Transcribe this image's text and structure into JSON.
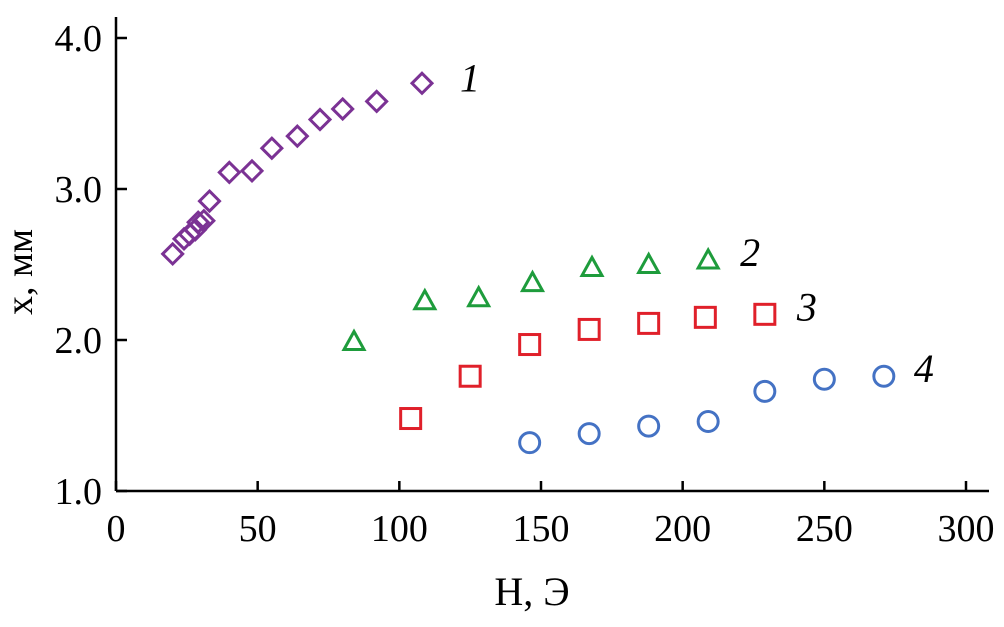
{
  "chart_data": {
    "type": "scatter",
    "title": "",
    "xlabel": "H, Э",
    "ylabel": "x, мм",
    "xlim": [
      0,
      300
    ],
    "ylim": [
      1.0,
      4.0
    ],
    "x_ticks": [
      0,
      50,
      100,
      150,
      200,
      250,
      300
    ],
    "x_tick_labels": [
      "0",
      "50",
      "100",
      "150",
      "200",
      "250",
      "300"
    ],
    "y_ticks": [
      1.0,
      2.0,
      3.0,
      4.0
    ],
    "y_tick_labels": [
      "1.0",
      "2.0",
      "3.0",
      "4.0"
    ],
    "grid": false,
    "legend": "none",
    "series": [
      {
        "name": "1",
        "marker": "diamond",
        "color": "#7b3294",
        "points": [
          [
            20,
            2.57
          ],
          [
            24,
            2.67
          ],
          [
            26,
            2.7
          ],
          [
            28,
            2.73
          ],
          [
            29,
            2.78
          ],
          [
            31,
            2.79
          ],
          [
            33,
            2.92
          ],
          [
            40,
            3.11
          ],
          [
            48,
            3.12
          ],
          [
            55,
            3.27
          ],
          [
            64,
            3.35
          ],
          [
            72,
            3.46
          ],
          [
            80,
            3.53
          ],
          [
            92,
            3.58
          ],
          [
            108,
            3.7
          ]
        ]
      },
      {
        "name": "2",
        "marker": "triangle",
        "color": "#1e9c3c",
        "points": [
          [
            84,
            1.99
          ],
          [
            109,
            2.26
          ],
          [
            128,
            2.28
          ],
          [
            147,
            2.38
          ],
          [
            168,
            2.48
          ],
          [
            188,
            2.5
          ],
          [
            209,
            2.53
          ]
        ]
      },
      {
        "name": "3",
        "marker": "square",
        "color": "#e0202a",
        "points": [
          [
            104,
            1.48
          ],
          [
            125,
            1.76
          ],
          [
            146,
            1.97
          ],
          [
            167,
            2.07
          ],
          [
            188,
            2.11
          ],
          [
            208,
            2.15
          ],
          [
            229,
            2.17
          ]
        ]
      },
      {
        "name": "4",
        "marker": "circle",
        "color": "#4472c4",
        "points": [
          [
            146,
            1.32
          ],
          [
            167,
            1.38
          ],
          [
            188,
            1.43
          ],
          [
            209,
            1.46
          ],
          [
            229,
            1.66
          ],
          [
            250,
            1.74
          ],
          [
            271,
            1.76
          ]
        ]
      }
    ]
  }
}
